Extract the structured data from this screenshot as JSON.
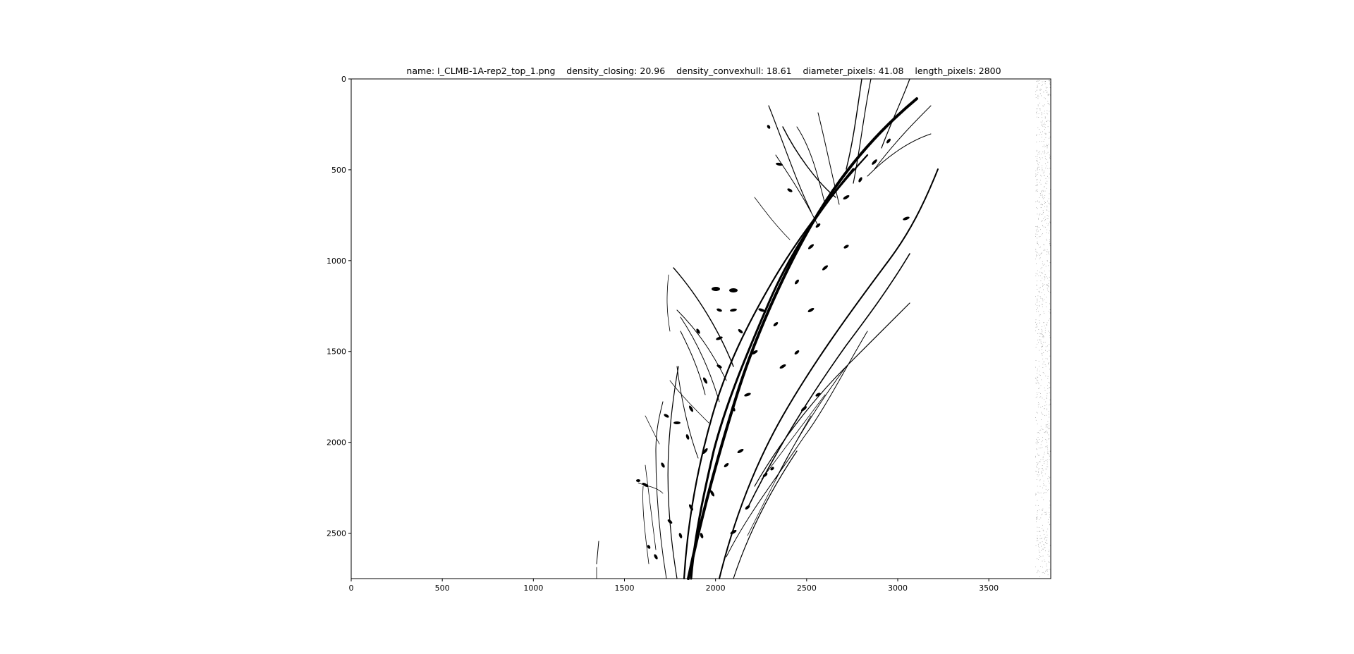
{
  "figure": {
    "title": "name: I_CLMB-1A-rep2_top_1.png    density_closing: 20.96    density_convexhull: 18.61    diameter_pixels: 41.08    length_pixels: 2800"
  },
  "axes": {
    "x_ticks": [
      "0",
      "500",
      "1000",
      "1500",
      "2000",
      "2500",
      "3000",
      "3500"
    ],
    "y_ticks": [
      "0",
      "500",
      "1000",
      "1500",
      "2000",
      "2500"
    ],
    "x_tick_values": [
      0,
      500,
      1000,
      1500,
      2000,
      2500,
      3000,
      3500
    ],
    "y_tick_values": [
      0,
      500,
      1000,
      1500,
      2000,
      2500
    ],
    "xlim": [
      0,
      3840
    ],
    "ylim": [
      2750,
      0
    ],
    "image_type": "binary plant segmentation mask, black on white"
  },
  "colors": {
    "foreground": "#000000",
    "background": "#ffffff"
  }
}
